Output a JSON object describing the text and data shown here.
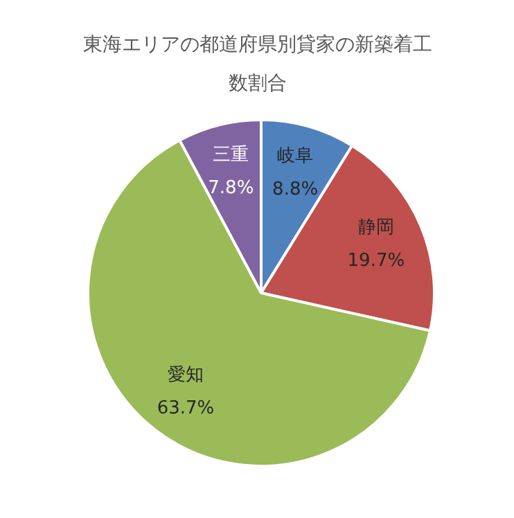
{
  "chart_data": {
    "type": "pie",
    "title": "東海エリアの都道府県別貸家の新築着工数割合",
    "categories": [
      "岐阜",
      "静岡",
      "愛知",
      "三重"
    ],
    "values": [
      8.8,
      19.7,
      63.7,
      7.8
    ],
    "value_labels": [
      "8.8%",
      "19.7%",
      "63.7%",
      "7.8%"
    ],
    "colors": [
      "#4f81bd",
      "#c0504d",
      "#9bbb59",
      "#8064a2"
    ]
  }
}
